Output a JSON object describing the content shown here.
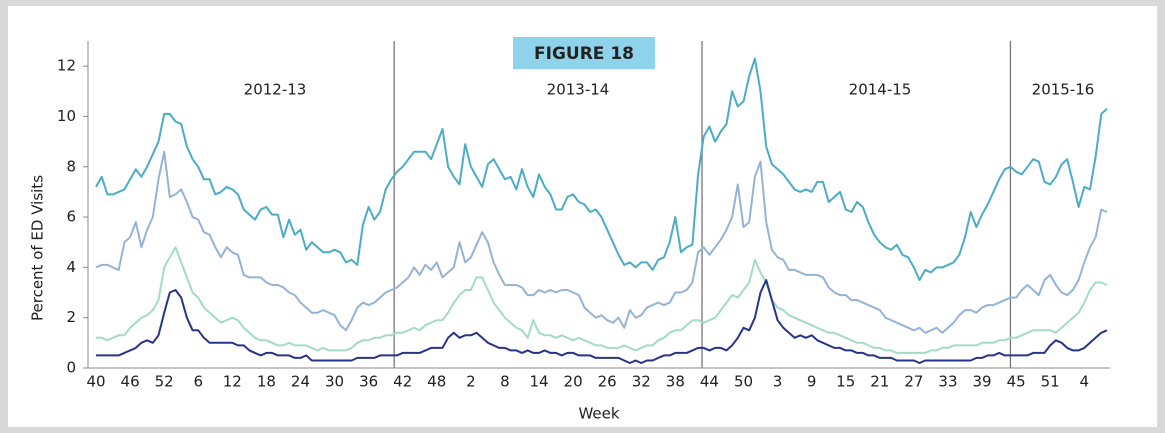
{
  "chart_data": {
    "type": "line",
    "title": "FIGURE 18",
    "y_label": "Percent of ED Visits",
    "x_label": "Week",
    "annotations": [
      "2012-13",
      "2013-14",
      "2014-15",
      "2015-16"
    ],
    "categories": [
      "40",
      null,
      null,
      null,
      null,
      null,
      "46",
      null,
      null,
      null,
      null,
      null,
      "52",
      null,
      null,
      null,
      null,
      null,
      "6",
      null,
      null,
      null,
      null,
      null,
      "12",
      null,
      null,
      null,
      null,
      null,
      "18",
      null,
      null,
      null,
      null,
      null,
      "24",
      null,
      null,
      null,
      null,
      null,
      "30",
      null,
      null,
      null,
      null,
      null,
      "36",
      null,
      null,
      null,
      null,
      null,
      "42",
      null,
      null,
      null,
      null,
      null,
      "48",
      null,
      null,
      null,
      null,
      null,
      "2",
      null,
      null,
      null,
      null,
      null,
      "8",
      null,
      null,
      null,
      null,
      null,
      "14",
      null,
      null,
      null,
      null,
      null,
      "20",
      null,
      null,
      null,
      null,
      null,
      "26",
      null,
      null,
      null,
      null,
      null,
      "32",
      null,
      null,
      null,
      null,
      null,
      "38",
      null,
      null,
      null,
      null,
      null,
      "44",
      null,
      null,
      null,
      null,
      null,
      "50",
      null,
      null,
      null,
      null,
      null,
      "3",
      null,
      null,
      null,
      null,
      null,
      "9",
      null,
      null,
      null,
      null,
      null,
      "15",
      null,
      null,
      null,
      null,
      null,
      "21",
      null,
      null,
      null,
      null,
      null,
      "27",
      null,
      null,
      null,
      null,
      null,
      "33",
      null,
      null,
      null,
      null,
      null,
      "39",
      null,
      null,
      null,
      null,
      null,
      "45",
      null,
      null,
      null,
      null,
      null,
      "51",
      null,
      null,
      null,
      null,
      null,
      "4",
      null,
      null,
      null,
      null
    ],
    "series": [
      {
        "color": "#4BACC6",
        "values": [
          7.2,
          7.6,
          6.9,
          6.9,
          7.0,
          7.1,
          7.5,
          7.9,
          7.6,
          8.0,
          8.5,
          9.0,
          10.1,
          10.1,
          9.8,
          9.7,
          8.8,
          8.3,
          8.0,
          7.5,
          7.5,
          6.9,
          7.0,
          7.2,
          7.1,
          6.9,
          6.3,
          6.1,
          5.9,
          6.3,
          6.4,
          6.1,
          6.1,
          5.2,
          5.9,
          5.3,
          5.5,
          4.7,
          5.0,
          4.8,
          4.6,
          4.6,
          4.7,
          4.6,
          4.2,
          4.3,
          4.1,
          5.7,
          6.4,
          5.9,
          6.2,
          7.1,
          7.5,
          7.8,
          8.0,
          8.3,
          8.6,
          8.6,
          8.6,
          8.3,
          8.9,
          9.5,
          8.0,
          7.6,
          7.3,
          8.9,
          8.0,
          7.6,
          7.2,
          8.1,
          8.3,
          7.9,
          7.5,
          7.6,
          7.1,
          7.9,
          7.2,
          6.8,
          7.7,
          7.2,
          6.9,
          6.3,
          6.3,
          6.8,
          6.9,
          6.6,
          6.5,
          6.2,
          6.3,
          6.0,
          5.5,
          5.0,
          4.5,
          4.1,
          4.2,
          4.0,
          4.2,
          4.2,
          3.9,
          4.3,
          4.4,
          5.0,
          6.0,
          4.6,
          4.8,
          4.9,
          7.7,
          9.2,
          9.6,
          9.0,
          9.4,
          9.7,
          11.0,
          10.4,
          10.6,
          11.6,
          12.3,
          11.0,
          8.8,
          8.1,
          7.9,
          7.7,
          7.4,
          7.1,
          7.0,
          7.1,
          7.0,
          7.4,
          7.4,
          6.6,
          6.8,
          7.0,
          6.3,
          6.2,
          6.6,
          6.4,
          5.8,
          5.3,
          5.0,
          4.8,
          4.7,
          4.9,
          4.5,
          4.4,
          4.0,
          3.5,
          3.9,
          3.8,
          4.0,
          4.0,
          4.1,
          4.2,
          4.5,
          5.2,
          6.2,
          5.6,
          6.1,
          6.5,
          7.0,
          7.5,
          7.9,
          8.0,
          7.8,
          7.7,
          8.0,
          8.3,
          8.2,
          7.4,
          7.3,
          7.6,
          8.1,
          8.3,
          7.4,
          6.4,
          7.2,
          7.1,
          8.4,
          10.1,
          10.3
        ]
      },
      {
        "color": "#95B3D7",
        "values": [
          4.0,
          4.1,
          4.1,
          4.0,
          3.9,
          5.0,
          5.2,
          5.8,
          4.8,
          5.5,
          6.0,
          7.5,
          8.6,
          6.8,
          6.9,
          7.1,
          6.6,
          6.0,
          5.9,
          5.4,
          5.3,
          4.8,
          4.4,
          4.8,
          4.6,
          4.5,
          3.7,
          3.6,
          3.6,
          3.6,
          3.4,
          3.3,
          3.3,
          3.2,
          3.0,
          2.9,
          2.6,
          2.4,
          2.2,
          2.2,
          2.3,
          2.2,
          2.1,
          1.7,
          1.5,
          1.9,
          2.4,
          2.6,
          2.5,
          2.6,
          2.8,
          3.0,
          3.1,
          3.2,
          3.4,
          3.6,
          4.0,
          3.7,
          4.1,
          3.9,
          4.2,
          3.6,
          3.8,
          4.0,
          5.0,
          4.2,
          4.4,
          4.9,
          5.4,
          5.0,
          4.2,
          3.7,
          3.3,
          3.3,
          3.3,
          3.2,
          2.9,
          2.9,
          3.1,
          3.0,
          3.1,
          3.0,
          3.1,
          3.1,
          3.0,
          2.9,
          2.4,
          2.2,
          2.0,
          2.1,
          1.9,
          1.8,
          2.0,
          1.6,
          2.3,
          2.0,
          2.1,
          2.4,
          2.5,
          2.6,
          2.5,
          2.6,
          3.0,
          3.0,
          3.1,
          3.4,
          4.6,
          4.8,
          4.5,
          4.8,
          5.1,
          5.5,
          6.0,
          7.3,
          5.6,
          5.8,
          7.6,
          8.2,
          5.8,
          4.7,
          4.4,
          4.3,
          3.9,
          3.9,
          3.8,
          3.7,
          3.7,
          3.7,
          3.6,
          3.2,
          3.0,
          2.9,
          2.9,
          2.7,
          2.7,
          2.6,
          2.5,
          2.4,
          2.3,
          2.0,
          1.9,
          1.8,
          1.7,
          1.6,
          1.5,
          1.6,
          1.4,
          1.5,
          1.6,
          1.4,
          1.6,
          1.8,
          2.1,
          2.3,
          2.3,
          2.2,
          2.4,
          2.5,
          2.5,
          2.6,
          2.7,
          2.8,
          2.8,
          3.1,
          3.3,
          3.1,
          2.9,
          3.5,
          3.7,
          3.3,
          3.0,
          2.9,
          3.1,
          3.5,
          4.2,
          4.8,
          5.2,
          6.3,
          6.2
        ]
      },
      {
        "color": "#A3DBC6",
        "values": [
          1.2,
          1.2,
          1.1,
          1.2,
          1.3,
          1.3,
          1.6,
          1.8,
          2.0,
          2.1,
          2.3,
          2.7,
          4.0,
          4.4,
          4.8,
          4.2,
          3.6,
          3.0,
          2.8,
          2.4,
          2.2,
          2.0,
          1.8,
          1.9,
          2.0,
          1.9,
          1.6,
          1.4,
          1.2,
          1.1,
          1.1,
          1.0,
          0.9,
          0.9,
          1.0,
          0.9,
          0.9,
          0.9,
          0.8,
          0.7,
          0.8,
          0.7,
          0.7,
          0.7,
          0.7,
          0.8,
          1.0,
          1.1,
          1.1,
          1.2,
          1.2,
          1.3,
          1.3,
          1.4,
          1.4,
          1.5,
          1.6,
          1.5,
          1.7,
          1.8,
          1.9,
          1.9,
          2.2,
          2.6,
          2.9,
          3.1,
          3.1,
          3.6,
          3.6,
          3.1,
          2.6,
          2.3,
          2.0,
          1.8,
          1.6,
          1.5,
          1.2,
          1.9,
          1.4,
          1.3,
          1.3,
          1.2,
          1.3,
          1.2,
          1.1,
          1.2,
          1.1,
          1.0,
          0.9,
          0.9,
          0.8,
          0.8,
          0.8,
          0.9,
          0.8,
          0.7,
          0.8,
          0.9,
          0.9,
          1.1,
          1.2,
          1.4,
          1.5,
          1.5,
          1.7,
          1.9,
          1.9,
          1.8,
          1.9,
          2.0,
          2.3,
          2.6,
          2.9,
          2.8,
          3.1,
          3.4,
          4.3,
          3.8,
          3.4,
          2.7,
          2.4,
          2.3,
          2.1,
          2.0,
          1.9,
          1.8,
          1.7,
          1.6,
          1.5,
          1.4,
          1.4,
          1.3,
          1.2,
          1.1,
          1.0,
          1.0,
          0.9,
          0.8,
          0.8,
          0.7,
          0.7,
          0.6,
          0.6,
          0.6,
          0.6,
          0.6,
          0.6,
          0.7,
          0.7,
          0.8,
          0.8,
          0.9,
          0.9,
          0.9,
          0.9,
          0.9,
          1.0,
          1.0,
          1.0,
          1.1,
          1.1,
          1.2,
          1.2,
          1.3,
          1.4,
          1.5,
          1.5,
          1.5,
          1.5,
          1.4,
          1.6,
          1.8,
          2.0,
          2.2,
          2.6,
          3.1,
          3.4,
          3.4,
          3.3
        ]
      },
      {
        "color": "#27348B",
        "values": [
          0.5,
          0.5,
          0.5,
          0.5,
          0.5,
          0.6,
          0.7,
          0.8,
          1.0,
          1.1,
          1.0,
          1.3,
          2.2,
          3.0,
          3.1,
          2.8,
          2.0,
          1.5,
          1.5,
          1.2,
          1.0,
          1.0,
          1.0,
          1.0,
          1.0,
          0.9,
          0.9,
          0.7,
          0.6,
          0.5,
          0.6,
          0.6,
          0.5,
          0.5,
          0.5,
          0.4,
          0.4,
          0.5,
          0.3,
          0.3,
          0.3,
          0.3,
          0.3,
          0.3,
          0.3,
          0.3,
          0.4,
          0.4,
          0.4,
          0.4,
          0.5,
          0.5,
          0.5,
          0.5,
          0.6,
          0.6,
          0.6,
          0.6,
          0.7,
          0.8,
          0.8,
          0.8,
          1.2,
          1.4,
          1.2,
          1.3,
          1.3,
          1.4,
          1.2,
          1.0,
          0.9,
          0.8,
          0.8,
          0.7,
          0.7,
          0.6,
          0.7,
          0.6,
          0.6,
          0.7,
          0.6,
          0.6,
          0.5,
          0.6,
          0.6,
          0.5,
          0.5,
          0.5,
          0.4,
          0.4,
          0.4,
          0.4,
          0.4,
          0.3,
          0.2,
          0.3,
          0.2,
          0.3,
          0.3,
          0.4,
          0.5,
          0.5,
          0.6,
          0.6,
          0.6,
          0.7,
          0.8,
          0.8,
          0.7,
          0.8,
          0.8,
          0.7,
          0.9,
          1.2,
          1.6,
          1.5,
          2.0,
          3.0,
          3.5,
          2.7,
          1.9,
          1.6,
          1.4,
          1.2,
          1.3,
          1.2,
          1.3,
          1.1,
          1.0,
          0.9,
          0.8,
          0.8,
          0.7,
          0.7,
          0.6,
          0.6,
          0.5,
          0.5,
          0.4,
          0.4,
          0.4,
          0.3,
          0.3,
          0.3,
          0.3,
          0.2,
          0.3,
          0.3,
          0.3,
          0.3,
          0.3,
          0.3,
          0.3,
          0.3,
          0.3,
          0.4,
          0.4,
          0.5,
          0.5,
          0.6,
          0.5,
          0.5,
          0.5,
          0.5,
          0.5,
          0.6,
          0.6,
          0.6,
          0.9,
          1.1,
          1.0,
          0.8,
          0.7,
          0.7,
          0.8,
          1.0,
          1.2,
          1.4,
          1.5
        ]
      }
    ],
    "ylim": [
      0,
      13
    ],
    "yticks": [
      0,
      2,
      4,
      6,
      8,
      10,
      12
    ],
    "grid": false
  }
}
